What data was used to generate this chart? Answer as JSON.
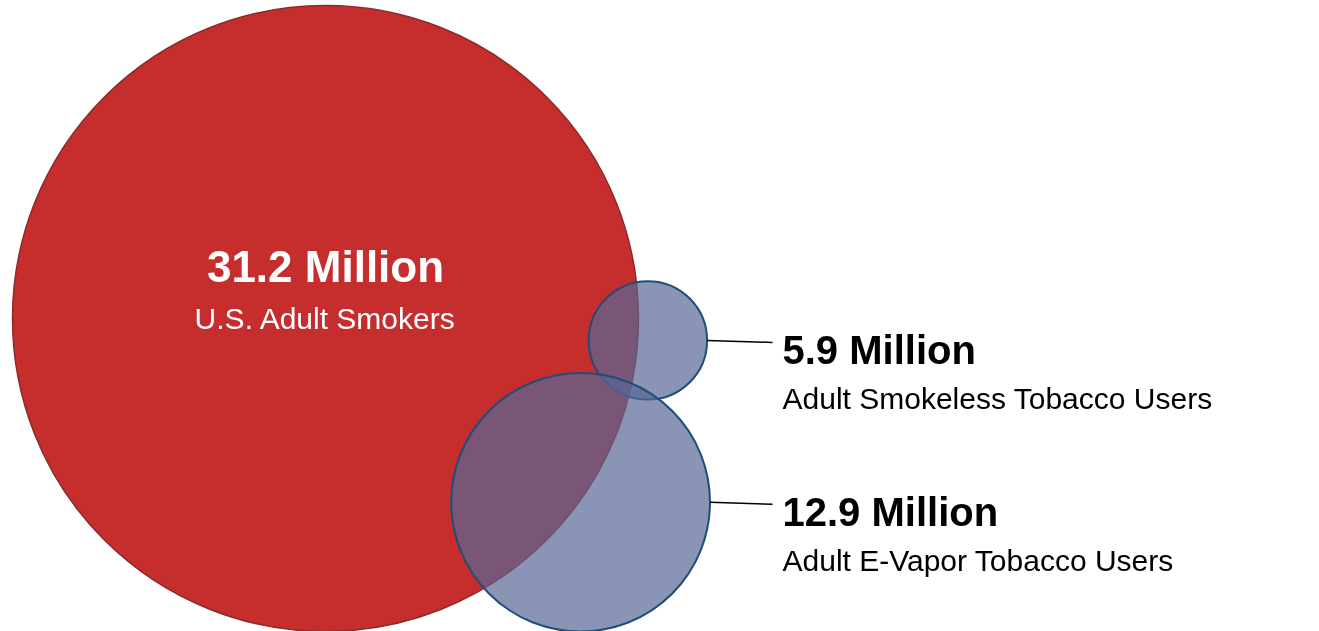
{
  "chart_data": {
    "type": "other",
    "categories": [
      "U.S. Adult Smokers",
      "Adult Smokeless Tobacco Users",
      "Adult E-Vapor Tobacco Users"
    ],
    "values": [
      31.2,
      5.9,
      12.9
    ],
    "value_labels": [
      "31.2 Million",
      "5.9 Million",
      "12.9 Million"
    ],
    "colors": [
      "#c62e2e",
      "#586695",
      "#586695"
    ]
  }
}
